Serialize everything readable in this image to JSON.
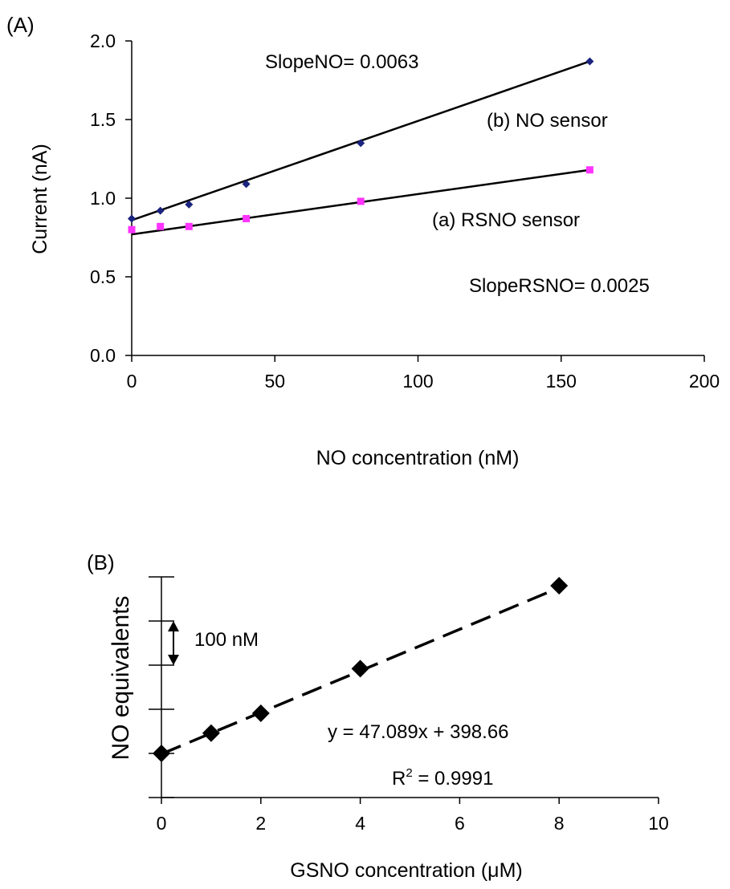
{
  "chart_data": [
    {
      "panel_label": "(A)",
      "type": "scatter",
      "xlabel": "NO concentration (nM)",
      "ylabel": "Current (nA)",
      "xlim": [
        0,
        200
      ],
      "ylim": [
        0,
        2
      ],
      "xticks": [
        0,
        50,
        100,
        150,
        200
      ],
      "xtick_labels": [
        "0",
        "50",
        "100",
        "150",
        "200"
      ],
      "yticks": [
        0,
        0.5,
        1,
        1.5,
        2
      ],
      "ytick_labels": [
        "0.0",
        "0.5",
        "1.0",
        "1.5",
        "2.0"
      ],
      "grid": false,
      "series": [
        {
          "name": "(b) NO sensor",
          "marker": "diamond",
          "color": "#1a237e",
          "x": [
            0,
            10,
            20,
            40,
            80,
            160
          ],
          "y": [
            0.87,
            0.92,
            0.96,
            1.09,
            1.35,
            1.87
          ],
          "fit": {
            "x": [
              0,
              160
            ],
            "y": [
              0.86,
              1.87
            ]
          }
        },
        {
          "name": "(a) RSNO sensor",
          "marker": "square",
          "color": "#ff33ff",
          "x": [
            0,
            10,
            20,
            40,
            80,
            160
          ],
          "y": [
            0.8,
            0.82,
            0.82,
            0.87,
            0.98,
            1.18
          ],
          "fit": {
            "x": [
              0,
              160
            ],
            "y": [
              0.77,
              1.18
            ]
          }
        }
      ],
      "annotations": {
        "slope_no": "SlopeNO= 0.0063",
        "slope_rsno": "SlopeRSNO= 0.0025"
      }
    },
    {
      "panel_label": "(B)",
      "type": "scatter",
      "xlabel": "GSNO concentration (μM)",
      "ylabel": "NO equivalents",
      "xlim": [
        0,
        10
      ],
      "ylim": [
        300,
        800
      ],
      "xticks": [
        0,
        2,
        4,
        6,
        8,
        10
      ],
      "xtick_labels": [
        "0",
        "2",
        "4",
        "6",
        "8",
        "10"
      ],
      "yticks": [
        300,
        400,
        500,
        600,
        700,
        800
      ],
      "grid": false,
      "series": [
        {
          "marker": "diamond",
          "color": "#000000",
          "x": [
            0,
            1,
            2,
            4,
            8
          ],
          "y": [
            400,
            446,
            491,
            592,
            780
          ],
          "fit": {
            "x": [
              0,
              8
            ],
            "y": [
              398.66,
              775.37
            ],
            "style": "dashed"
          }
        }
      ],
      "scale_bar": {
        "label": "100 nM",
        "value": 100
      },
      "annotations": {
        "equation": "y = 47.089x + 398.66",
        "r2_prefix": "R",
        "r2_sup": "2",
        "r2_suffix": " = 0.9991"
      }
    }
  ]
}
